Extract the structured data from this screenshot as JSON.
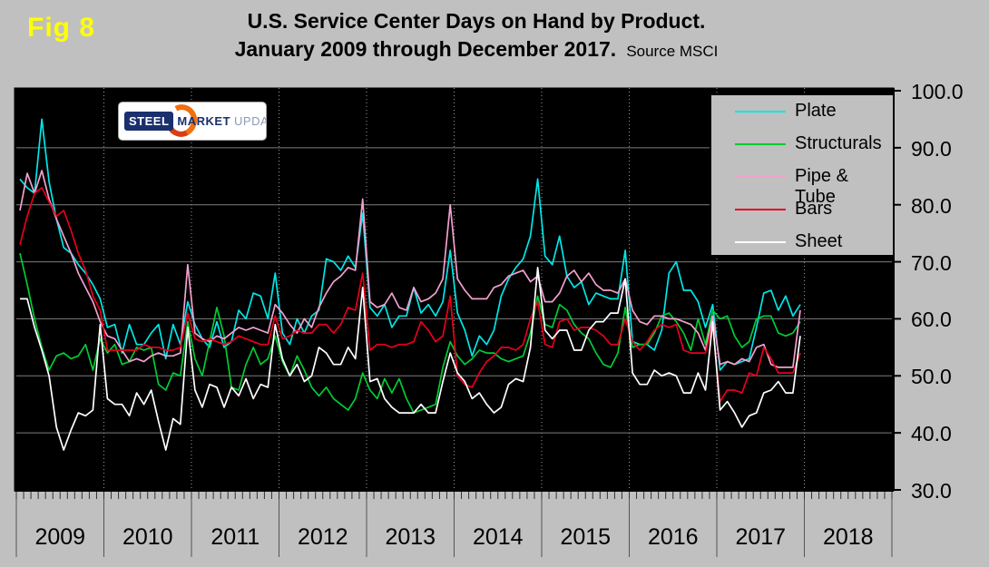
{
  "fig_label": "Fig 8",
  "title": {
    "line1": "U.S. Service Center Days on Hand by Product.",
    "line2": "January 2009 through December 2017.",
    "source": "Source MSCI"
  },
  "logo": {
    "word1": "STEEL",
    "word2": "MARKET",
    "word3": "UPDATE"
  },
  "colors": {
    "page_background": "#c0c0c0",
    "plot_background": "#000000",
    "gridline": "#7d7d7d",
    "year_gridline": "#9a9a9a",
    "axis": "#000000",
    "fig_label": "#ffff00"
  },
  "y_axis": {
    "tick_labels": [
      "100.0",
      "90.0",
      "80.0",
      "70.0",
      "60.0",
      "50.0",
      "40.0",
      "30.0"
    ],
    "min": 30,
    "max": 100,
    "step": 10
  },
  "x_axis": {
    "year_labels": [
      "2009",
      "2010",
      "2011",
      "2012",
      "2013",
      "2014",
      "2015",
      "2016",
      "2017",
      "2018"
    ]
  },
  "legend": [
    {
      "label": "Plate",
      "color": "#00e7e7"
    },
    {
      "label": "Structurals",
      "color": "#00cc33"
    },
    {
      "label": "Pipe & Tube",
      "color": "#f2a0ce"
    },
    {
      "label": "Bars",
      "color": "#e8001c"
    },
    {
      "label": "Sheet",
      "color": "#ffffff"
    }
  ],
  "chart_data": {
    "type": "line",
    "title": "U.S. Service Center Days on Hand by Product. January 2009 through December 2017. Source MSCI",
    "x_unit": "month",
    "x_range": "Jan 2009 - Dec 2017 (108 monthly points)",
    "x_axis_span": [
      "2009",
      "2010",
      "2011",
      "2012",
      "2013",
      "2014",
      "2015",
      "2016",
      "2017",
      "2018"
    ],
    "ylim": [
      30,
      100
    ],
    "grid": "horizontal solid at 40-90, dotted vertical at year boundaries",
    "legend_position": "top-right",
    "series": [
      {
        "name": "Plate",
        "color": "#00e7e7",
        "values": [
          84.5,
          83,
          82,
          95,
          84,
          77.5,
          72.5,
          71.5,
          69.5,
          68,
          66,
          63.5,
          58.5,
          59,
          54,
          59,
          55.5,
          55.5,
          57.5,
          59,
          53,
          59,
          55.5,
          63,
          59,
          56.5,
          55,
          59.5,
          55,
          56,
          61.5,
          60,
          64.5,
          64,
          60,
          68,
          57.5,
          55.5,
          60,
          57.5,
          60.5,
          61.5,
          70.5,
          70,
          68.5,
          71,
          69,
          78.5,
          62,
          60.5,
          62.5,
          58.5,
          60.5,
          60.5,
          65.5,
          61,
          62.5,
          60.5,
          63,
          72,
          61,
          58,
          53.5,
          57,
          55.5,
          58,
          64,
          67,
          69,
          70.5,
          74.5,
          84.5,
          71,
          69.5,
          74.5,
          67.5,
          65.5,
          66.5,
          62.5,
          64.5,
          64,
          63.5,
          63.5,
          72,
          56,
          55.5,
          55.5,
          54.5,
          58,
          68,
          70,
          65,
          65,
          63,
          58.5,
          62.5,
          51,
          52.5,
          52,
          52.5,
          53,
          58.5,
          64.5,
          65,
          61.5,
          64,
          60.5,
          62.5
        ]
      },
      {
        "name": "Structurals",
        "color": "#00cc33",
        "values": [
          71.5,
          66,
          60,
          55,
          51,
          53.5,
          54,
          53,
          53.5,
          55.5,
          51,
          56.5,
          54,
          55.5,
          52,
          52.5,
          55,
          54.5,
          55,
          48.5,
          47.5,
          50.5,
          50,
          59.5,
          53,
          50,
          56,
          62,
          57,
          48,
          47.5,
          52,
          55,
          52,
          53,
          57,
          52.5,
          50,
          53.5,
          51,
          48,
          46.5,
          48,
          46,
          45,
          44,
          46,
          50.5,
          47.5,
          46,
          49.5,
          47,
          49.5,
          46,
          43.5,
          44,
          44.5,
          45,
          51.5,
          56,
          53.5,
          52,
          53,
          54.5,
          54,
          54,
          53,
          52.5,
          53,
          53.5,
          57.5,
          64,
          59,
          58.5,
          62.5,
          61.5,
          59,
          57.5,
          56.5,
          54,
          52,
          51.5,
          54,
          62,
          55,
          55.5,
          55.5,
          57.5,
          60.5,
          61,
          59.5,
          57.5,
          54.5,
          60,
          55.5,
          61.5,
          60,
          60.5,
          57,
          55,
          56,
          60,
          60.5,
          60.5,
          57.5,
          57,
          57.5,
          59.5
        ]
      },
      {
        "name": "Pipe & Tube",
        "color": "#f2a0ce",
        "values": [
          79,
          85.5,
          82,
          86,
          81,
          77.5,
          74.5,
          71.5,
          68,
          65.5,
          63,
          59.5,
          57,
          56.5,
          54.5,
          52.5,
          53,
          52.5,
          53.5,
          54,
          53.5,
          53.5,
          54,
          69.5,
          57.5,
          56.5,
          56,
          57,
          56.5,
          57.5,
          58.5,
          58,
          58.5,
          58,
          57.5,
          62.5,
          61,
          59,
          57.5,
          60,
          58.5,
          62,
          64.5,
          66.5,
          67.5,
          69,
          68.5,
          81,
          63,
          62,
          62.5,
          64.5,
          62,
          61.5,
          65.5,
          63,
          63.5,
          64.5,
          67,
          80,
          67,
          65,
          63.5,
          63.5,
          63.5,
          65.5,
          66,
          67.5,
          68,
          68.5,
          66.5,
          67.5,
          63,
          63,
          64.5,
          67.5,
          68.5,
          66.5,
          68,
          66,
          65,
          65,
          64.5,
          67,
          61.5,
          59.5,
          59,
          60.5,
          60.5,
          60,
          60,
          59.5,
          59,
          57.5,
          54.5,
          60.5,
          52,
          52.5,
          52,
          53,
          52.5,
          55,
          55.5,
          52,
          51.5,
          51.5,
          51.5,
          61.5
        ]
      },
      {
        "name": "Bars",
        "color": "#e8001c",
        "values": [
          73,
          78,
          82,
          83,
          80.5,
          78,
          79,
          75.5,
          71.5,
          68.5,
          64,
          61.5,
          54.5,
          54.5,
          54.5,
          54.5,
          54.5,
          55.5,
          55,
          55,
          54.5,
          54.5,
          55,
          61,
          56.5,
          56,
          56.5,
          56,
          55.5,
          56,
          57,
          56.5,
          56,
          55.5,
          55.5,
          60.5,
          56.5,
          57,
          58,
          57.5,
          57.5,
          59,
          59,
          57.5,
          59,
          62,
          61.5,
          68,
          54.5,
          55.5,
          55.5,
          55,
          55.5,
          55.5,
          56,
          59.5,
          58,
          56,
          57,
          64,
          50,
          48.5,
          48,
          50.5,
          52.5,
          53.5,
          55,
          55,
          54.5,
          55.5,
          60,
          63,
          55.5,
          55,
          59.5,
          60,
          58,
          58.5,
          58.5,
          58,
          57,
          55.5,
          55.5,
          60,
          56,
          54.5,
          56,
          58,
          59,
          58.5,
          59,
          54.5,
          54,
          54,
          54,
          59,
          45.5,
          47.5,
          47.5,
          47,
          50.5,
          50,
          55,
          53,
          50.5,
          50.5,
          50.5,
          54
        ]
      },
      {
        "name": "Sheet",
        "color": "#ffffff",
        "values": [
          63.5,
          63.5,
          58.5,
          54.5,
          50,
          41,
          37,
          40.5,
          43.5,
          43,
          44,
          59,
          46,
          45,
          45,
          43,
          47,
          45,
          47.5,
          42,
          37,
          42.5,
          41.5,
          58.5,
          47.5,
          44.5,
          48.5,
          48,
          44.5,
          48,
          46.5,
          49.5,
          46,
          48.5,
          48,
          59,
          53,
          50,
          52,
          49,
          50,
          55,
          54,
          52,
          52,
          55,
          53,
          65.5,
          49,
          49.5,
          46,
          44.5,
          43.5,
          43.5,
          43.5,
          45,
          43.5,
          43.5,
          49,
          54,
          50.5,
          49,
          46,
          47,
          45,
          43.5,
          44.5,
          48.5,
          49.5,
          49,
          55,
          69,
          58,
          56.5,
          58,
          58,
          54.5,
          54.5,
          58,
          59.5,
          59.5,
          61,
          61,
          67,
          50.5,
          48.5,
          48.5,
          51,
          50,
          50.5,
          50,
          47,
          47,
          50.5,
          47.5,
          59.5,
          44,
          45.5,
          43.5,
          41,
          43,
          43.5,
          47,
          47.5,
          49,
          47,
          47,
          57
        ]
      }
    ]
  }
}
